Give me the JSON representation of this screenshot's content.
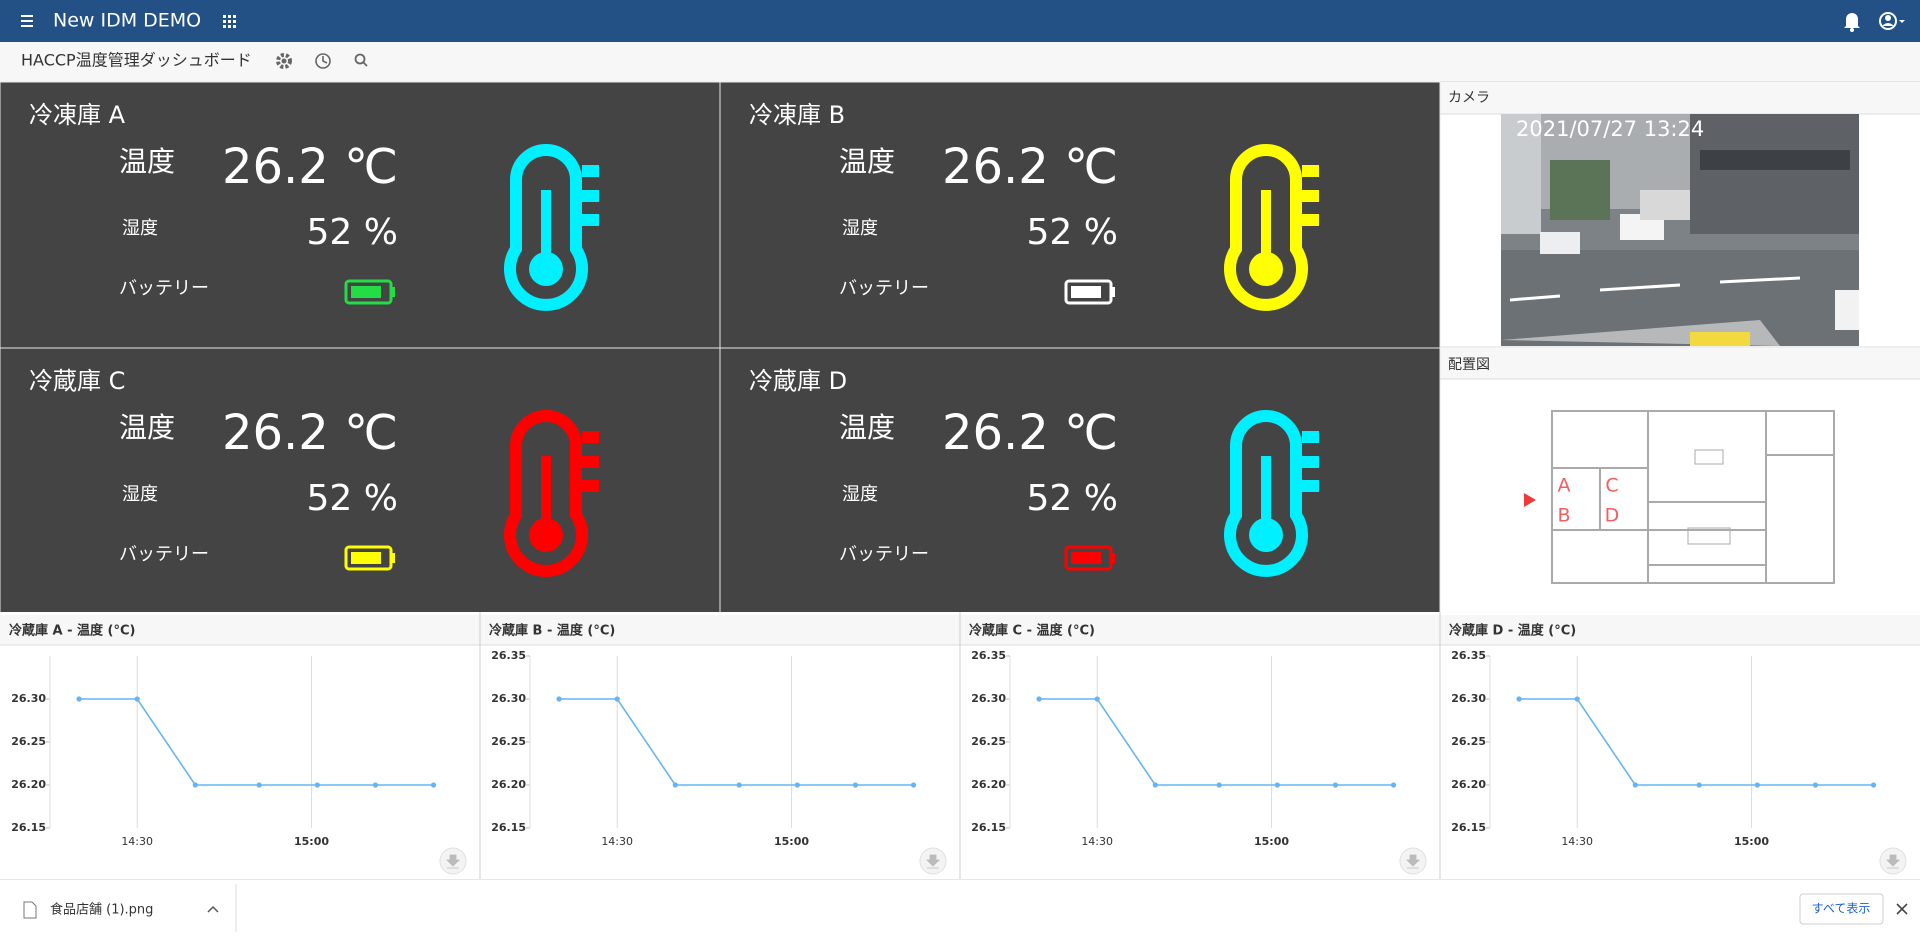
{
  "header": {
    "title": "New IDM DEMO"
  },
  "toolbar": {
    "title": "HACCP温度管理ダッシュボード"
  },
  "tiles": [
    {
      "name": "冷凍庫 A",
      "temp_label": "温度",
      "temp": "26.2 ℃",
      "humidity_label": "湿度",
      "humidity": "52 %",
      "battery_label": "バッテリー",
      "battery_color": "#22dd44",
      "thermo_color": "#00f0ff"
    },
    {
      "name": "冷凍庫 B",
      "temp_label": "温度",
      "temp": "26.2 ℃",
      "humidity_label": "湿度",
      "humidity": "52 %",
      "battery_label": "バッテリー",
      "battery_color": "#ffffff",
      "thermo_color": "#ffff00"
    },
    {
      "name": "冷蔵庫 C",
      "temp_label": "温度",
      "temp": "26.2 ℃",
      "humidity_label": "湿度",
      "humidity": "52 %",
      "battery_label": "バッテリー",
      "battery_color": "#ffff00",
      "thermo_color": "#ff0000"
    },
    {
      "name": "冷蔵庫 D",
      "temp_label": "温度",
      "temp": "26.2 ℃",
      "humidity_label": "湿度",
      "humidity": "52 %",
      "battery_label": "バッテリー",
      "battery_color": "#ff0000",
      "thermo_color": "#00f0ff"
    }
  ],
  "camera": {
    "title": "カメラ",
    "timestamp": "2021/07/27 13:24"
  },
  "floorplan": {
    "title": "配置図",
    "labels": [
      "A",
      "B",
      "C",
      "D"
    ]
  },
  "chart_data": [
    {
      "type": "line",
      "title": "冷蔵庫 A - 温度 (°C)",
      "x": [
        860,
        870,
        880,
        891,
        901,
        911,
        921
      ],
      "values": [
        26.3,
        26.3,
        26.2,
        26.2,
        26.2,
        26.2,
        26.2
      ],
      "color": "#64b5f6",
      "xlim": [
        855,
        924
      ],
      "xticks": [
        {
          "value": 870,
          "label": "14:30"
        },
        {
          "value": 900,
          "label": "15:00"
        }
      ],
      "ylim": [
        26.15,
        26.35
      ],
      "yticks": [
        {
          "value": 26.3,
          "label": "26.30"
        },
        {
          "value": 26.25,
          "label": "26.25"
        },
        {
          "value": 26.2,
          "label": "26.20"
        },
        {
          "value": 26.15,
          "label": "26.15"
        }
      ]
    },
    {
      "type": "line",
      "title": "冷蔵庫 B - 温度 (°C)",
      "x": [
        860,
        870,
        880,
        891,
        901,
        911,
        921
      ],
      "values": [
        26.3,
        26.3,
        26.2,
        26.2,
        26.2,
        26.2,
        26.2
      ],
      "color": "#64b5f6",
      "xlim": [
        855,
        924
      ],
      "xticks": [
        {
          "value": 870,
          "label": "14:30"
        },
        {
          "value": 900,
          "label": "15:00"
        }
      ],
      "ylim": [
        26.15,
        26.35
      ],
      "yticks": [
        {
          "value": 26.35,
          "label": "26.35"
        },
        {
          "value": 26.3,
          "label": "26.30"
        },
        {
          "value": 26.25,
          "label": "26.25"
        },
        {
          "value": 26.2,
          "label": "26.20"
        },
        {
          "value": 26.15,
          "label": "26.15"
        }
      ]
    },
    {
      "type": "line",
      "title": "冷蔵庫 C - 温度 (°C)",
      "x": [
        860,
        870,
        880,
        891,
        901,
        911,
        921
      ],
      "values": [
        26.3,
        26.3,
        26.2,
        26.2,
        26.2,
        26.2,
        26.2
      ],
      "color": "#64b5f6",
      "xlim": [
        855,
        924
      ],
      "xticks": [
        {
          "value": 870,
          "label": "14:30"
        },
        {
          "value": 900,
          "label": "15:00"
        }
      ],
      "ylim": [
        26.15,
        26.35
      ],
      "yticks": [
        {
          "value": 26.35,
          "label": "26.35"
        },
        {
          "value": 26.3,
          "label": "26.30"
        },
        {
          "value": 26.25,
          "label": "26.25"
        },
        {
          "value": 26.2,
          "label": "26.20"
        },
        {
          "value": 26.15,
          "label": "26.15"
        }
      ]
    },
    {
      "type": "line",
      "title": "冷蔵庫 D - 温度 (°C)",
      "x": [
        860,
        870,
        880,
        891,
        901,
        911,
        921
      ],
      "values": [
        26.3,
        26.3,
        26.2,
        26.2,
        26.2,
        26.2,
        26.2
      ],
      "color": "#64b5f6",
      "xlim": [
        855,
        924
      ],
      "xticks": [
        {
          "value": 870,
          "label": "14:30"
        },
        {
          "value": 900,
          "label": "15:00"
        }
      ],
      "ylim": [
        26.15,
        26.35
      ],
      "yticks": [
        {
          "value": 26.35,
          "label": "26.35"
        },
        {
          "value": 26.3,
          "label": "26.30"
        },
        {
          "value": 26.25,
          "label": "26.25"
        },
        {
          "value": 26.2,
          "label": "26.20"
        },
        {
          "value": 26.15,
          "label": "26.15"
        }
      ]
    }
  ],
  "download": {
    "file": "食品店舗 (1).png",
    "show_all": "すべて表示"
  }
}
